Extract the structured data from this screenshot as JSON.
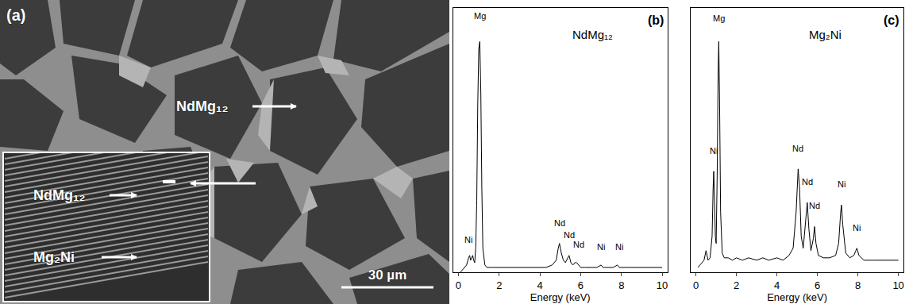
{
  "micrograph": {
    "label": "(a)",
    "arrows": [
      {
        "text": "NdMg₁₂"
      },
      {
        "text": "NdMg₁₂"
      },
      {
        "text": "Mg₂Ni"
      }
    ],
    "scale_bar": "30 µm"
  },
  "chart_data": [
    {
      "type": "line",
      "label": "(b)",
      "title": "NdMg₁₂",
      "x_label": "Energy (keV)",
      "x": [
        0.1,
        0.2,
        0.3,
        0.4,
        0.5,
        0.55,
        0.6,
        0.65,
        0.7,
        0.75,
        0.8,
        0.85,
        0.9,
        0.95,
        1.0,
        1.05,
        1.1,
        1.15,
        1.2,
        1.3,
        1.4,
        1.6,
        1.8,
        2.0,
        2.5,
        3.0,
        3.5,
        4.0,
        4.3,
        4.6,
        4.8,
        4.9,
        4.96,
        5.05,
        5.15,
        5.25,
        5.35,
        5.43,
        5.52,
        5.62,
        5.72,
        5.8,
        5.9,
        6.0,
        6.2,
        6.5,
        6.8,
        7.0,
        7.1,
        7.3,
        7.6,
        7.8,
        7.9,
        8.2,
        8.6,
        9.0,
        9.5,
        10.0
      ],
      "values": [
        0,
        1,
        2,
        3,
        6,
        7,
        5,
        6,
        7,
        5,
        4,
        10,
        30,
        70,
        93,
        96,
        75,
        35,
        10,
        3,
        2,
        2,
        2,
        2,
        2,
        2,
        2,
        2,
        2,
        3,
        5,
        10,
        12,
        8,
        5,
        4,
        6,
        7,
        4,
        3,
        4,
        4,
        3,
        2,
        2,
        2,
        2,
        3,
        2,
        2,
        2,
        3,
        2,
        2,
        2,
        2,
        2,
        2
      ],
      "color": "#000000",
      "xlim": [
        -0.25,
        10.25
      ],
      "xticks": [
        0,
        2,
        4,
        6,
        8,
        10
      ],
      "ylim": [
        0,
        110
      ],
      "yticks": [],
      "tick_labels": "x",
      "annotations": [
        {
          "text": "Mg",
          "x": 1.05,
          "y": 104
        },
        {
          "text": "Ni",
          "x": 0.5,
          "y": 11
        },
        {
          "text": "Nd",
          "x": 4.96,
          "y": 18
        },
        {
          "text": "Nd",
          "x": 5.45,
          "y": 13
        },
        {
          "text": "Nd",
          "x": 5.9,
          "y": 9
        },
        {
          "text": "Ni",
          "x": 7.0,
          "y": 8
        },
        {
          "text": "Ni",
          "x": 7.9,
          "y": 8
        }
      ]
    },
    {
      "type": "line",
      "label": "(c)",
      "title": "Mg₂Ni",
      "x_label": "Energy (keV)",
      "x": [
        0.1,
        0.2,
        0.3,
        0.4,
        0.5,
        0.55,
        0.6,
        0.7,
        0.8,
        0.85,
        0.88,
        0.92,
        0.96,
        1.0,
        1.05,
        1.1,
        1.13,
        1.17,
        1.22,
        1.3,
        1.4,
        1.6,
        1.8,
        2.0,
        2.3,
        2.6,
        3.0,
        3.3,
        3.6,
        4.0,
        4.3,
        4.6,
        4.8,
        4.95,
        5.05,
        5.12,
        5.2,
        5.3,
        5.42,
        5.5,
        5.58,
        5.68,
        5.8,
        5.86,
        5.93,
        6.05,
        6.3,
        6.6,
        6.9,
        7.05,
        7.15,
        7.19,
        7.25,
        7.4,
        7.6,
        7.8,
        7.9,
        7.95,
        8.05,
        8.3,
        8.7,
        9.2,
        9.6,
        10.0
      ],
      "values": [
        2,
        3,
        4,
        5,
        9,
        7,
        5,
        6,
        15,
        35,
        42,
        30,
        15,
        12,
        40,
        85,
        96,
        70,
        25,
        8,
        6,
        6,
        5,
        6,
        5,
        6,
        5,
        6,
        5,
        6,
        5,
        7,
        10,
        25,
        43,
        35,
        15,
        10,
        20,
        29,
        18,
        9,
        14,
        19,
        12,
        7,
        6,
        6,
        7,
        12,
        25,
        28,
        20,
        8,
        6,
        7,
        9,
        10,
        7,
        5,
        5,
        5,
        5,
        5
      ],
      "color": "#000000",
      "xlim": [
        -0.25,
        10.25
      ],
      "xticks": [
        0,
        2,
        4,
        6,
        8,
        10
      ],
      "ylim": [
        0,
        110
      ],
      "yticks": [],
      "tick_labels": "x",
      "annotations": [
        {
          "text": "Mg",
          "x": 1.13,
          "y": 103
        },
        {
          "text": "Ni",
          "x": 0.88,
          "y": 48
        },
        {
          "text": "Nd",
          "x": 5.05,
          "y": 49
        },
        {
          "text": "Nd",
          "x": 5.5,
          "y": 35
        },
        {
          "text": "Nd",
          "x": 5.86,
          "y": 25
        },
        {
          "text": "Ni",
          "x": 7.19,
          "y": 34
        },
        {
          "text": "Ni",
          "x": 7.95,
          "y": 16
        }
      ]
    }
  ]
}
